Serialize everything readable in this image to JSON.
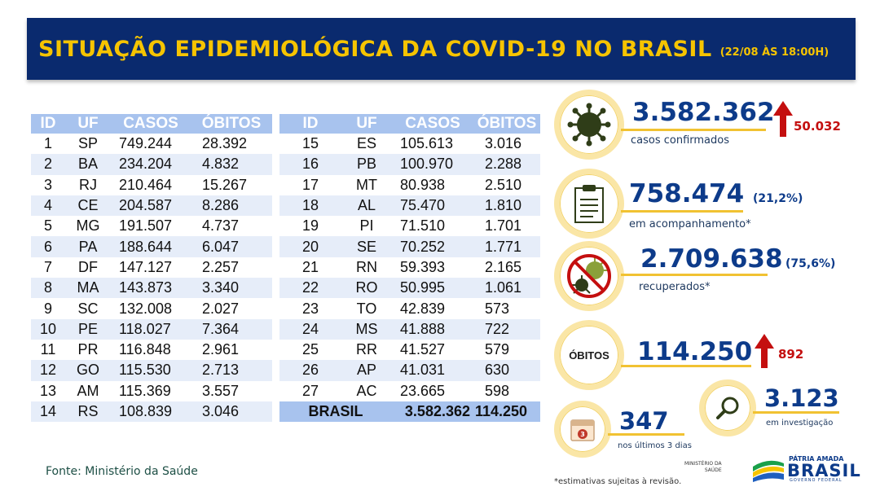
{
  "header": {
    "title": "SITUAÇÃO EPIDEMIOLÓGICA DA COVID-19 NO BRASIL",
    "subtitle": "(22/08 ÀS 18:00H)"
  },
  "table": {
    "columns": [
      "ID",
      "UF",
      "CASOS",
      "ÓBITOS"
    ],
    "rows_left": [
      [
        "1",
        "SP",
        "749.244",
        "28.392"
      ],
      [
        "2",
        "BA",
        "234.204",
        "4.832"
      ],
      [
        "3",
        "RJ",
        "210.464",
        "15.267"
      ],
      [
        "4",
        "CE",
        "204.587",
        "8.286"
      ],
      [
        "5",
        "MG",
        "191.507",
        "4.737"
      ],
      [
        "6",
        "PA",
        "188.644",
        "6.047"
      ],
      [
        "7",
        "DF",
        "147.127",
        "2.257"
      ],
      [
        "8",
        "MA",
        "143.873",
        "3.340"
      ],
      [
        "9",
        "SC",
        "132.008",
        "2.027"
      ],
      [
        "10",
        "PE",
        "118.027",
        "7.364"
      ],
      [
        "11",
        "PR",
        "116.848",
        "2.961"
      ],
      [
        "12",
        "GO",
        "115.530",
        "2.713"
      ],
      [
        "13",
        "AM",
        "115.369",
        "3.557"
      ],
      [
        "14",
        "RS",
        "108.839",
        "3.046"
      ]
    ],
    "rows_right": [
      [
        "15",
        "ES",
        "105.613",
        "3.016"
      ],
      [
        "16",
        "PB",
        "100.970",
        "2.288"
      ],
      [
        "17",
        "MT",
        "80.938",
        "2.510"
      ],
      [
        "18",
        "AL",
        "75.470",
        "1.810"
      ],
      [
        "19",
        "PI",
        "71.510",
        "1.701"
      ],
      [
        "20",
        "SE",
        "70.252",
        "1.771"
      ],
      [
        "21",
        "RN",
        "59.393",
        "2.165"
      ],
      [
        "22",
        "RO",
        "50.995",
        "1.061"
      ],
      [
        "23",
        "TO",
        "42.839",
        "573"
      ],
      [
        "24",
        "MS",
        "41.888",
        "722"
      ],
      [
        "25",
        "RR",
        "41.527",
        "579"
      ],
      [
        "26",
        "AP",
        "41.031",
        "630"
      ],
      [
        "27",
        "AC",
        "23.665",
        "598"
      ]
    ],
    "total": {
      "label": "BRASIL",
      "casos": "3.582.362",
      "obitos": "114.250"
    }
  },
  "source": "Fonte: Ministério da Saúde",
  "stats": {
    "confirmados": {
      "value": "3.582.362",
      "label": "casos confirmados",
      "increase": "50.032"
    },
    "acompanhamento": {
      "value": "758.474",
      "pct": "(21,2%)",
      "label": "em acompanhamento*"
    },
    "recuperados": {
      "value": "2.709.638",
      "pct": "(75,6%)",
      "label": "recuperados*"
    },
    "obitos": {
      "badge": "ÓBITOS",
      "value": "114.250",
      "increase": "892"
    },
    "ultimos": {
      "value": "347",
      "label": "nos últimos 3 dias",
      "calendar_number": "3"
    },
    "investigacao": {
      "value": "3.123",
      "label": "em investigação"
    }
  },
  "footer": {
    "note": "*estimativas sujeitas à revisão.",
    "ministerio_line1": "MINISTÉRIO DA",
    "ministerio_line2": "SAÚDE",
    "pab_top": "PÁTRIA AMADA",
    "pab_brasil": "BRASIL",
    "pab_sub": "GOVERNO FEDERAL"
  },
  "colors": {
    "header_bg": "#0a2a6e",
    "header_text": "#f6c400",
    "table_header": "#a8c3ee",
    "row_shade": "#e6edf9",
    "stat_blue": "#0d3b8a",
    "increase_red": "#c40f0f",
    "ring_yellow": "#f1c232"
  },
  "icons": [
    "virus-icon",
    "clipboard-icon",
    "no-virus-icon",
    "calendar-icon",
    "magnifier-icon",
    "arrow-up-icon",
    "brazil-flag-icon"
  ]
}
